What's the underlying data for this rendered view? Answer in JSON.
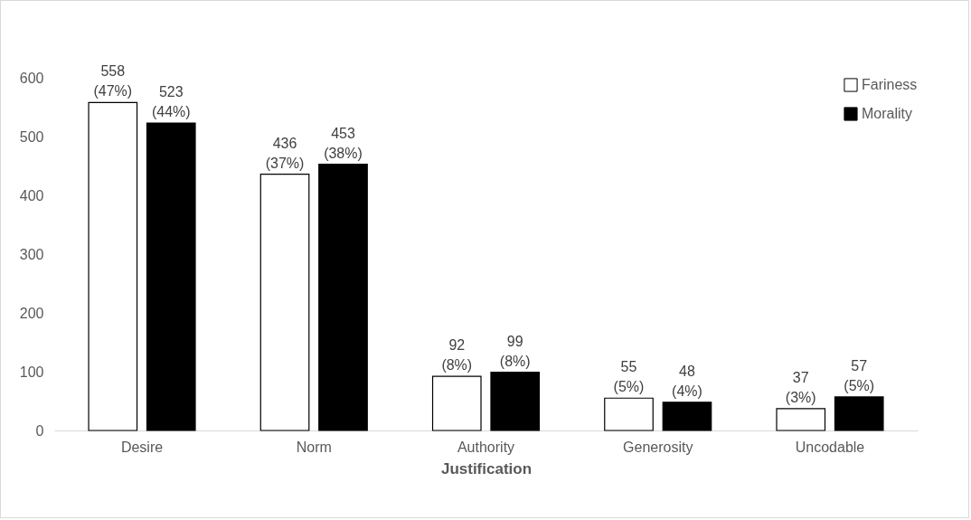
{
  "chart_data": {
    "type": "bar",
    "xlabel": "Justification",
    "categories": [
      "Desire",
      "Norm",
      "Authority",
      "Generosity",
      "Uncodable"
    ],
    "series": [
      {
        "name": "Fariness",
        "color": "#ffffff",
        "values": [
          558,
          436,
          92,
          55,
          37
        ],
        "value_labels": [
          "558 (47%)",
          "436 (37%)",
          "92 (8%)",
          "55 (5%)",
          "37 (3%)"
        ]
      },
      {
        "name": "Morality",
        "color": "#000000",
        "values": [
          523,
          453,
          99,
          48,
          57
        ],
        "value_labels": [
          "523 (44%)",
          "453 (38%)",
          "99 (8%)",
          "48 (4%)",
          "57 (5%)"
        ]
      }
    ],
    "ylim": [
      0,
      600
    ],
    "yticks": [
      0,
      100,
      200,
      300,
      400,
      500,
      600
    ],
    "grid": false,
    "legend": "top right"
  }
}
